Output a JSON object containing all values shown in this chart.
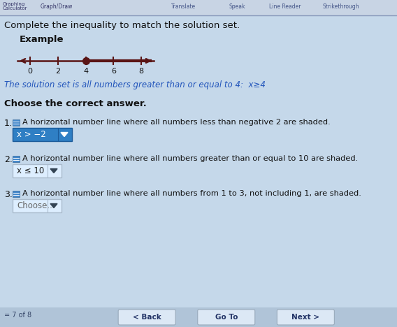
{
  "bg_color": "#c5d8ea",
  "toolbar_bg": "#c0cfe0",
  "title": "Complete the inequality to match the solution set.",
  "example_label": "Example",
  "number_line_ticks": [
    0,
    2,
    4,
    6,
    8
  ],
  "number_line_filled_dot_idx": 2,
  "italic_text": "The solution set is all numbers greater than or equal to 4:  x≥4",
  "section_title": "Choose the correct answer.",
  "items": [
    {
      "number": "1.",
      "description": "A horizontal number line where all numbers less than negative 2 are shaded.",
      "answer": "x > −2",
      "box_color": "#2f7fc4",
      "text_color": "#ffffff",
      "border_color": "#1a5a9a"
    },
    {
      "number": "2.",
      "description": "A horizontal number line where all numbers greater than or equal to 10 are shaded.",
      "answer": "x ≤ 10",
      "box_color": "#ddeeff",
      "text_color": "#222222",
      "border_color": "#aabbcc"
    },
    {
      "number": "3.",
      "description": "A horizontal number line where all numbers from 1 to 3, not including 1, are shaded.",
      "answer": "Choose...",
      "box_color": "#ddeeff",
      "text_color": "#666666",
      "border_color": "#aabbcc"
    }
  ],
  "bottom_bar_bg": "#b0c4d8",
  "bottom_buttons": [
    "< Back",
    "Go To",
    "Next >"
  ],
  "page_indicator": "= 7 of 8",
  "line_color": "#5a1515",
  "nl_thick_lw": 3.0,
  "nl_thin_lw": 1.8,
  "dot_size": 7
}
